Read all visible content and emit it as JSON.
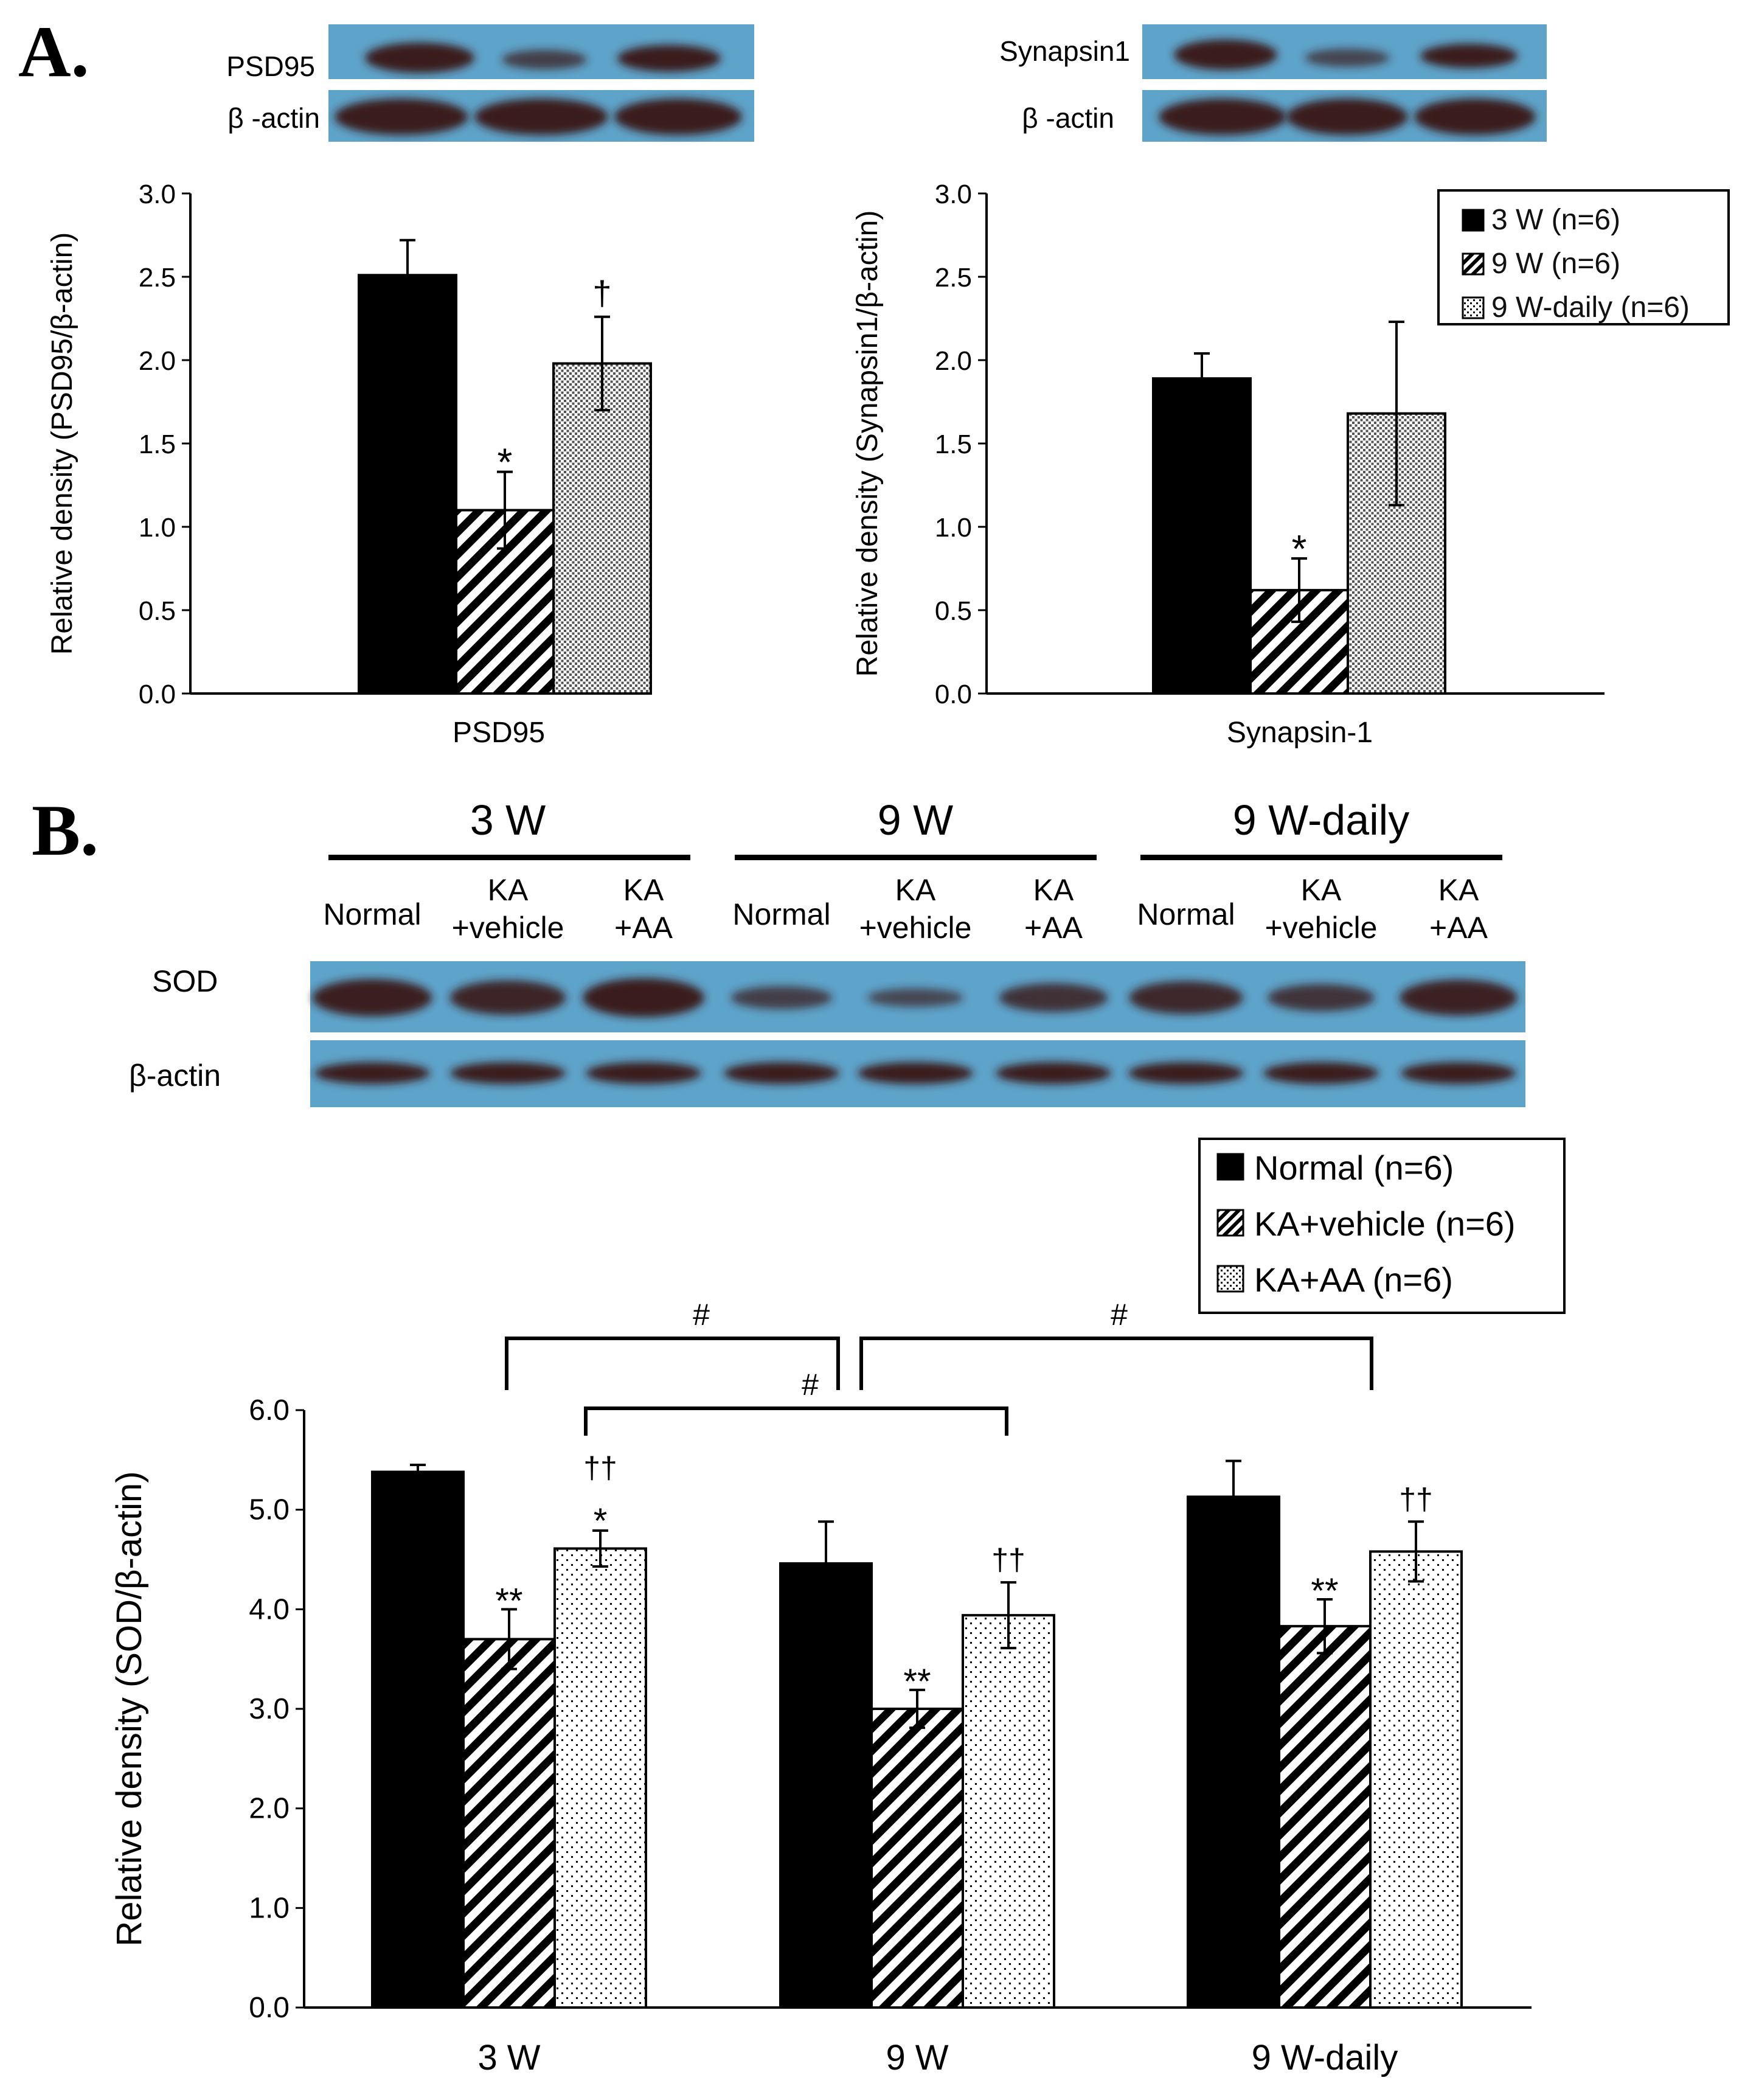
{
  "panels": {
    "a_letter": "A.",
    "b_letter": "B."
  },
  "blots_a": {
    "psd95": {
      "protein_label": "PSD95",
      "control_label": "β -actin"
    },
    "synapsin": {
      "protein_label": "Synapsin1",
      "control_label": "β -actin"
    }
  },
  "blot_b": {
    "groups": [
      "3 W",
      "9 W",
      "9 W-daily"
    ],
    "lane_labels": [
      [
        "Normal"
      ],
      [
        "KA",
        "+vehicle"
      ],
      [
        "KA",
        "+AA"
      ],
      [
        "Normal"
      ],
      [
        "KA",
        "+vehicle"
      ],
      [
        "KA",
        "+AA"
      ],
      [
        "Normal"
      ],
      [
        "KA",
        "+vehicle"
      ],
      [
        "KA",
        "+AA"
      ]
    ],
    "protein_label": "SOD",
    "control_label": "β-actin",
    "sod_band_intensity": [
      0.95,
      0.85,
      1.0,
      0.45,
      0.3,
      0.65,
      0.8,
      0.6,
      0.9
    ],
    "colors": {
      "membrane": "#5ea3c9",
      "band": "#3a1f1a"
    }
  },
  "chart_data": [
    {
      "type": "bar",
      "panel": "A-left",
      "categories": [
        "PSD95"
      ],
      "xlabel": "PSD95",
      "ylabel": "Relative density (PSD95/β-actin)",
      "ylim": [
        0,
        3.0
      ],
      "yticks": [
        "0.0",
        "0.5",
        "1.0",
        "1.5",
        "2.0",
        "2.5",
        "3.0"
      ],
      "series": [
        {
          "values": [
            2.51
          ],
          "errors": [
            0.21
          ],
          "annotation": "",
          "pattern": "solid"
        },
        {
          "values": [
            1.1
          ],
          "errors": [
            0.23
          ],
          "annotation": "*",
          "pattern": "hatch"
        },
        {
          "values": [
            1.98
          ],
          "errors": [
            0.28
          ],
          "annotation": "†",
          "pattern": "dots"
        }
      ],
      "legend": null
    },
    {
      "type": "bar",
      "panel": "A-right",
      "categories": [
        "Synapsin-1"
      ],
      "xlabel": "Synapsin-1",
      "ylabel": "Relative density (Synapsin1/β-actin)",
      "ylim": [
        0,
        3.0
      ],
      "yticks": [
        "0.0",
        "0.5",
        "1.0",
        "1.5",
        "2.0",
        "2.5",
        "3.0"
      ],
      "series": [
        {
          "name": "3 W (n=6)",
          "values": [
            1.89
          ],
          "errors": [
            0.15
          ],
          "annotation": "",
          "pattern": "solid"
        },
        {
          "name": "9 W (n=6)",
          "values": [
            0.62
          ],
          "errors": [
            0.19
          ],
          "annotation": "*",
          "pattern": "hatch"
        },
        {
          "name": "9 W-daily (n=6)",
          "values": [
            1.68
          ],
          "errors": [
            0.55
          ],
          "annotation": "",
          "pattern": "dots"
        }
      ],
      "legend": {
        "placement": "top-right"
      }
    },
    {
      "type": "bar",
      "panel": "B",
      "categories": [
        "3 W",
        "9 W",
        "9 W-daily"
      ],
      "xlabel": "",
      "ylabel": "Relative density (SOD/β-actin)",
      "ylim": [
        0,
        6.0
      ],
      "yticks": [
        "0.0",
        "1.0",
        "2.0",
        "3.0",
        "4.0",
        "5.0",
        "6.0"
      ],
      "series": [
        {
          "name": "Normal (n=6)",
          "values": [
            5.38,
            4.46,
            5.13
          ],
          "errors": [
            0.07,
            0.42,
            0.36
          ],
          "annotations": [
            [],
            [],
            []
          ],
          "pattern": "solid"
        },
        {
          "name": "KA+vehicle (n=6)",
          "values": [
            3.7,
            3.0,
            3.83
          ],
          "errors": [
            0.3,
            0.19,
            0.27
          ],
          "annotations": [
            [
              "**"
            ],
            [
              "**"
            ],
            [
              "**"
            ]
          ],
          "pattern": "hatch"
        },
        {
          "name": "KA+AA (n=6)",
          "values": [
            4.61,
            3.94,
            4.58
          ],
          "errors": [
            0.18,
            0.33,
            0.3
          ],
          "annotations": [
            [
              "*",
              "††"
            ],
            [
              "††"
            ],
            [
              "††"
            ]
          ],
          "pattern": "dots"
        }
      ],
      "brackets": [
        {
          "from": "3 W / KA+vehicle",
          "to": "9 W / Normal",
          "label": "#"
        },
        {
          "from": "3 W / KA+AA",
          "to": "9 W / KA+AA",
          "label": "#"
        },
        {
          "from": "9 W / Normal",
          "to": "9 W-daily / KA+vehicle",
          "label": "#"
        }
      ],
      "legend": {
        "placement": "top-right"
      }
    }
  ]
}
